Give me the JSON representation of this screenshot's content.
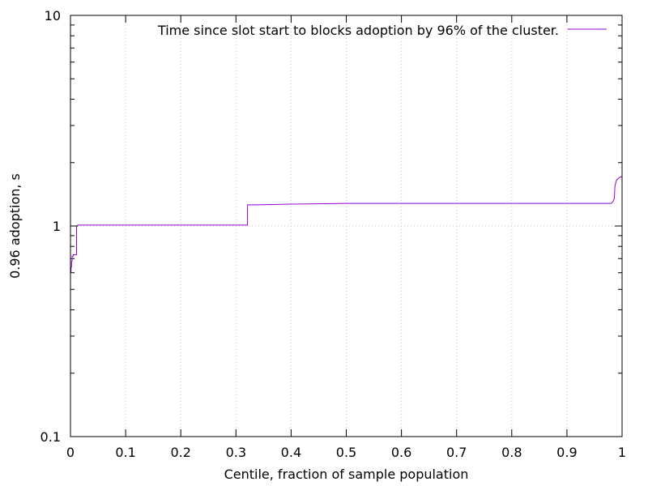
{
  "chart_data": {
    "type": "line",
    "title": "",
    "xlabel": "Centile, fraction of sample population",
    "ylabel": "0.96 adoption, s",
    "xlim": [
      0,
      1
    ],
    "ylim": [
      0.1,
      10
    ],
    "yscale": "log",
    "grid": true,
    "legend_position": "top-right",
    "x_ticks": [
      {
        "value": 0,
        "label": "0"
      },
      {
        "value": 0.1,
        "label": "0.1"
      },
      {
        "value": 0.2,
        "label": "0.2"
      },
      {
        "value": 0.3,
        "label": "0.3"
      },
      {
        "value": 0.4,
        "label": "0.4"
      },
      {
        "value": 0.5,
        "label": "0.5"
      },
      {
        "value": 0.6,
        "label": "0.6"
      },
      {
        "value": 0.7,
        "label": "0.7"
      },
      {
        "value": 0.8,
        "label": "0.8"
      },
      {
        "value": 0.9,
        "label": "0.9"
      },
      {
        "value": 1,
        "label": "1"
      }
    ],
    "y_ticks": [
      {
        "value": 0.1,
        "label": "0.1"
      },
      {
        "value": 1,
        "label": "1"
      },
      {
        "value": 10,
        "label": "10"
      }
    ],
    "series": [
      {
        "name": "Time since slot start to blocks adoption by 96% of the cluster.",
        "color": "#9400d3",
        "x": [
          0,
          0.001,
          0.001,
          0.002,
          0.002,
          0.003,
          0.003,
          0.005,
          0.005,
          0.011,
          0.011,
          0.013,
          0.013,
          0.1,
          0.2,
          0.3,
          0.321,
          0.321,
          0.34,
          0.4,
          0.5,
          0.6,
          0.7,
          0.8,
          0.9,
          0.98,
          0.983,
          0.986,
          0.987,
          0.99,
          0.995,
          1
        ],
        "y": [
          0.6,
          0.6,
          0.64,
          0.64,
          0.68,
          0.68,
          0.72,
          0.72,
          0.73,
          0.73,
          1.0,
          1.0,
          1.01,
          1.01,
          1.01,
          1.01,
          1.01,
          1.26,
          1.26,
          1.27,
          1.28,
          1.28,
          1.28,
          1.28,
          1.28,
          1.28,
          1.3,
          1.35,
          1.55,
          1.65,
          1.7,
          1.72
        ]
      }
    ]
  }
}
